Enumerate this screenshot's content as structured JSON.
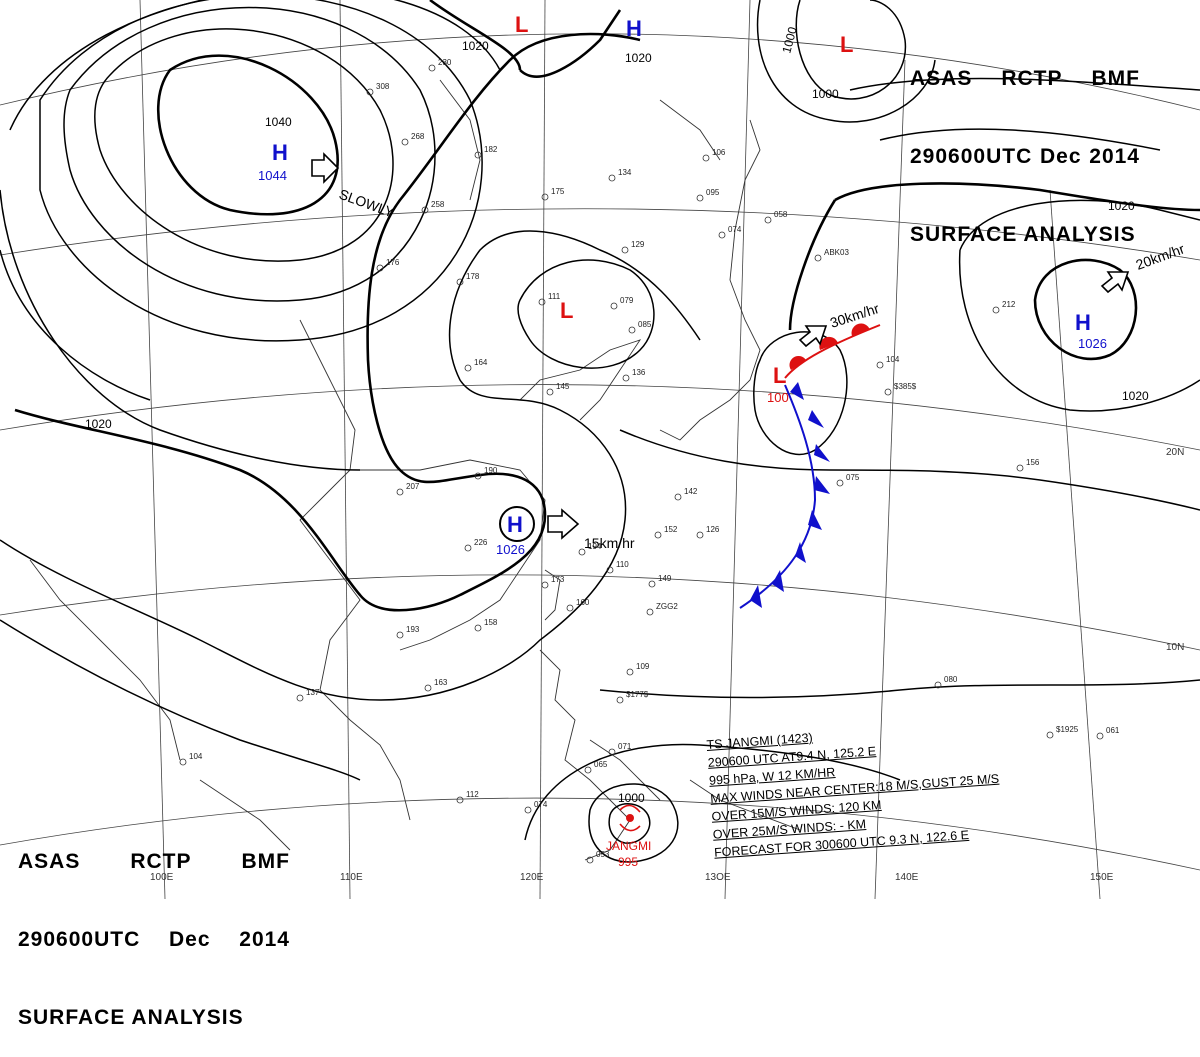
{
  "titles": {
    "line1": [
      "ASAS",
      "RCTP",
      "BMF"
    ],
    "line2": [
      "290600UTC",
      "Dec",
      "2014"
    ],
    "line3": "SURFACE ANALYSIS"
  },
  "isobar_labels": [
    "1040",
    "1020",
    "1020",
    "1020",
    "1000",
    "1000",
    "1020",
    "1020",
    "1020",
    "1000"
  ],
  "pressure_centers": [
    {
      "type": "H",
      "value": "1044",
      "color": "#1010cc"
    },
    {
      "type": "H",
      "value": "1026",
      "color": "#1010cc"
    },
    {
      "type": "H",
      "value": "1026",
      "color": "#1010cc"
    },
    {
      "type": "H",
      "value": "",
      "color": "#1010cc"
    },
    {
      "type": "L",
      "value": "",
      "color": "#dd1111"
    },
    {
      "type": "L",
      "value": "",
      "color": "#dd1111"
    },
    {
      "type": "L",
      "value": "",
      "color": "#dd1111"
    },
    {
      "type": "L",
      "value": "100",
      "color": "#dd1111"
    }
  ],
  "motion_labels": [
    "SLOWLY",
    "30km/hr",
    "20km/hr",
    "15km/hr"
  ],
  "latitude_labels": [
    "20N",
    "10N"
  ],
  "longitude_labels": [
    "100E",
    "110E",
    "120E",
    "13OE",
    "140E",
    "150E"
  ],
  "typhoon": {
    "name": "JANGMI",
    "pressure": "995",
    "center_isobar": "1000",
    "bulletin": [
      "TS  JANGMI  (1423)",
      "290600 UTC  AT9.4 N, 125.2 E",
      "995 hPa, W  12 KM/HR",
      "MAX WINDS NEAR CENTER:18 M/S,GUST 25 M/S",
      "OVER 15M/S WINDS: 120 KM",
      "OVER 25M/S WINDS: - KM",
      "FORECAST FOR 300600 UTC 9.3 N, 122.6 E"
    ]
  },
  "station_plots": [
    "308",
    "268",
    "182",
    "134",
    "106",
    "095",
    "175",
    "258",
    "230",
    "176",
    "178",
    "079",
    "085",
    "111",
    "129",
    "164",
    "145",
    "136",
    "190",
    "207",
    "142",
    "152",
    "226",
    "194",
    "160",
    "149",
    "126",
    "110",
    "173",
    "158",
    "193",
    "163",
    "137",
    "104",
    "109",
    "071",
    "065",
    "112",
    "074",
    "053",
    "075",
    "156",
    "212",
    "080",
    "061",
    "104",
    "058",
    "074",
    "ABK03",
    "ZGG2",
    "$385$",
    "$177$",
    "$1925"
  ],
  "colors": {
    "high": "#1010cc",
    "low": "#dd1111",
    "cold_front": "#1010cc",
    "warm_front": "#dd1111"
  }
}
